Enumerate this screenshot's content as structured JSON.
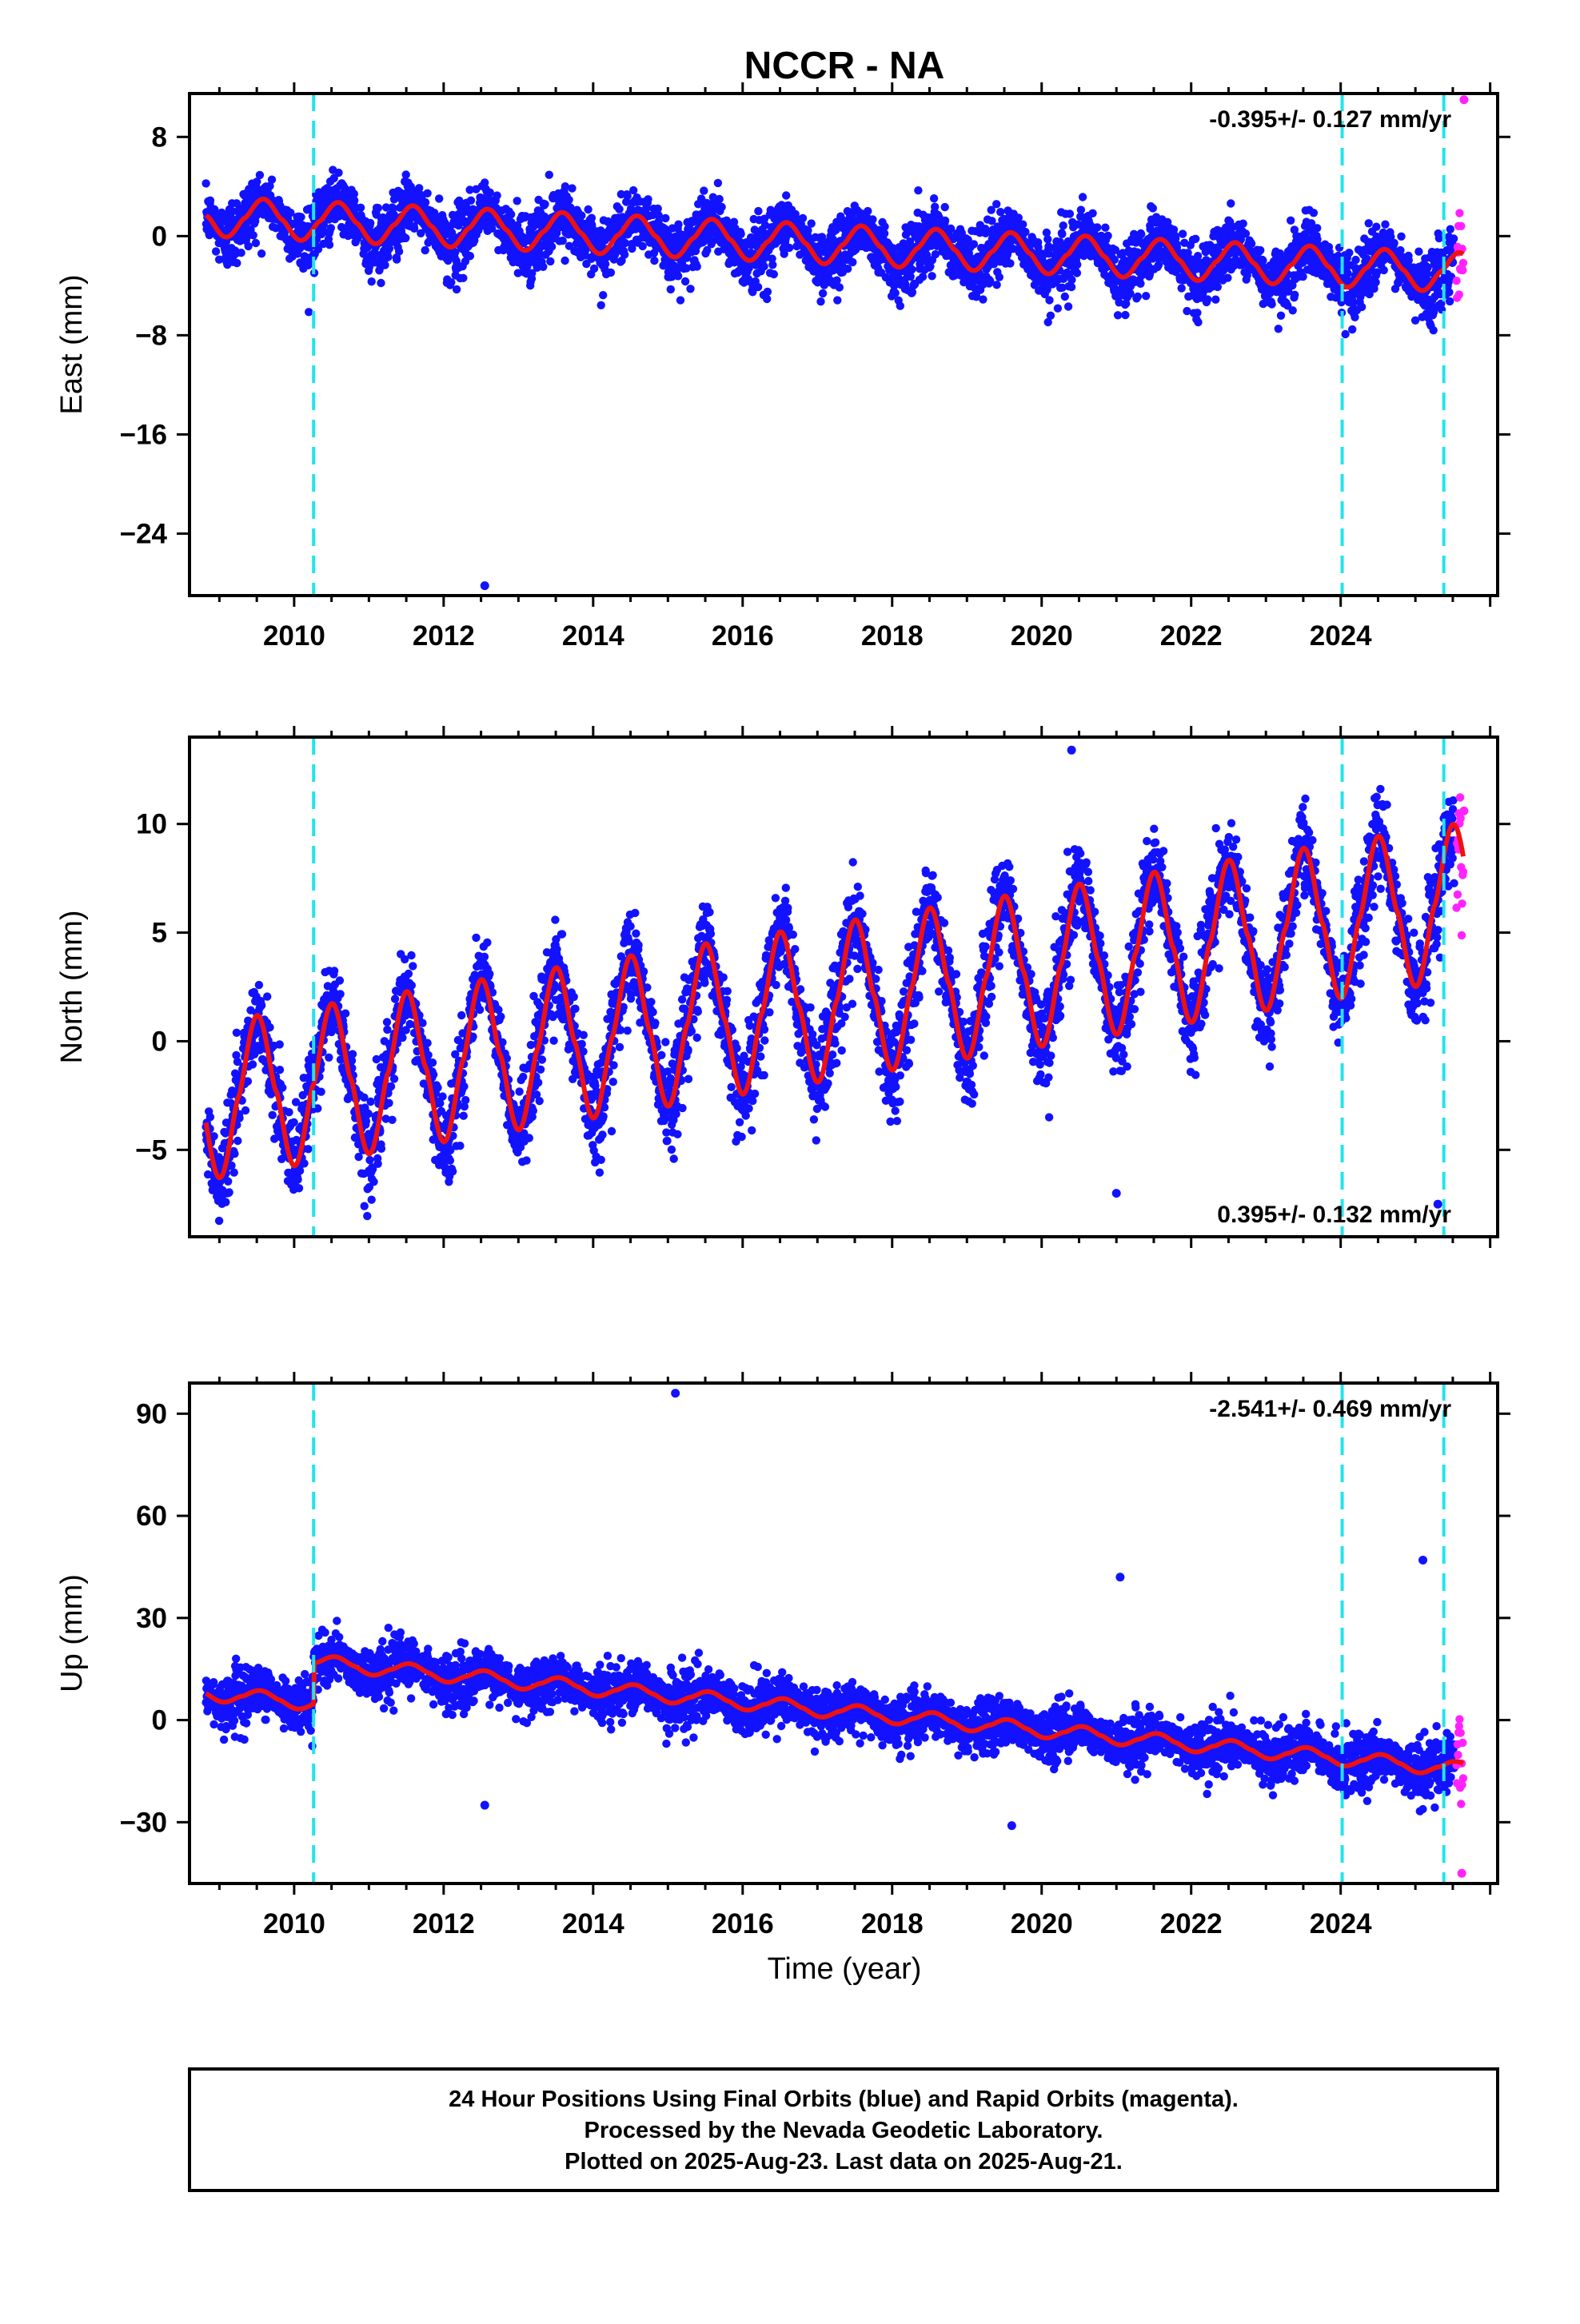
{
  "title": "NCCR - NA",
  "colors": {
    "final_points": "#1212ff",
    "rapid_points": "#ff22ff",
    "model_line": "#ee1111",
    "event_lines": "#22e4ec"
  },
  "xaxis": {
    "label": "Time (year)",
    "range": [
      2008.6,
      2026.1
    ],
    "ticks": [
      "2010",
      "2012",
      "2014",
      "2016",
      "2018",
      "2020",
      "2022",
      "2024"
    ],
    "minor_step_years": 0.5
  },
  "event_lines_years": [
    2010.26,
    2024.02,
    2025.38
  ],
  "rapid_start_year": 2025.55,
  "footer": [
    "24 Hour Positions Using Final Orbits (blue) and Rapid Orbits (magenta).",
    "Processed by the Nevada Geodetic Laboratory.",
    "Plotted on 2025-Aug-23. Last data on 2025-Aug-21."
  ],
  "chart_data": [
    {
      "type": "scatter",
      "component": "east",
      "ylabel": "East (mm)",
      "ylim": [
        -29,
        11.5
      ],
      "yticks": [
        "8",
        "0",
        "−8",
        "−16",
        "−24"
      ],
      "rate_label": "-0.395+/- 0.127 mm/yr",
      "rate_position": "top-right",
      "model": {
        "offsets": [
          0,
          0,
          0
        ],
        "slope_mm_per_yr": -0.27,
        "intercept_2008_8": 1.6,
        "annual_amplitude": 1.6,
        "annual_phase_peak_doy": 215,
        "noise_mm": 1.2
      },
      "outliers": [
        {
          "x": 2012.55,
          "y": -28.2
        },
        {
          "x": 2025.65,
          "y": 11.0
        }
      ],
      "series": [
        {
          "name": "Final Orbits (blue)",
          "values_summary": "daily positions 2008.8-2025.5"
        },
        {
          "name": "Rapid Orbits (magenta)",
          "values_summary": "daily positions 2025.55-2025.64"
        }
      ]
    },
    {
      "type": "scatter",
      "component": "north",
      "ylabel": "North (mm)",
      "ylim": [
        -9,
        14
      ],
      "yticks": [
        "10",
        "5",
        "0",
        "−5"
      ],
      "rate_label": "0.395+/- 0.132 mm/yr",
      "rate_position": "bottom-right",
      "model": {
        "offsets": [
          0,
          0,
          0
        ],
        "slope_mm_per_yr": 0.55,
        "intercept_2008_8": -2.8,
        "annual_amplitude": 3.6,
        "annual_phase_peak_doy": 185,
        "noise_mm": 1.0
      },
      "outliers": [
        {
          "x": 2020.4,
          "y": 13.4
        },
        {
          "x": 2021.0,
          "y": -7.0
        },
        {
          "x": 2025.3,
          "y": -7.5
        },
        {
          "x": 2025.65,
          "y": 10.6
        }
      ],
      "series": [
        {
          "name": "Final Orbits (blue)",
          "values_summary": "daily positions 2008.8-2025.5"
        },
        {
          "name": "Rapid Orbits (magenta)",
          "values_summary": "daily positions 2025.55-2025.64"
        }
      ]
    },
    {
      "type": "scatter",
      "component": "up",
      "ylabel": "Up (mm)",
      "ylim": [
        -48,
        99
      ],
      "yticks": [
        "90",
        "60",
        "30",
        "0",
        "−30"
      ],
      "rate_label": "-2.541+/- 0.469 mm/yr",
      "rate_position": "top-right",
      "model": {
        "offsets": [
          12,
          0,
          0
        ],
        "slope_mm_per_yr": -2.05,
        "intercept_2008_8": 8.0,
        "annual_amplitude": 2.2,
        "annual_phase_peak_doy": 200,
        "noise_mm": 3.6
      },
      "outliers": [
        {
          "x": 2015.1,
          "y": 96.0
        },
        {
          "x": 2021.05,
          "y": 42.0
        },
        {
          "x": 2025.1,
          "y": 47.0
        },
        {
          "x": 2012.55,
          "y": -25.0
        },
        {
          "x": 2019.6,
          "y": -31.0
        },
        {
          "x": 2025.62,
          "y": -45.0
        }
      ],
      "series": [
        {
          "name": "Final Orbits (blue)",
          "values_summary": "daily positions 2008.8-2025.5"
        },
        {
          "name": "Rapid Orbits (magenta)",
          "values_summary": "daily positions 2025.55-2025.64"
        }
      ]
    }
  ]
}
